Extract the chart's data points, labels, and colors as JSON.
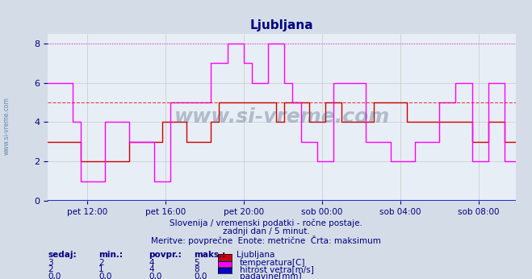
{
  "title": "Ljubljana",
  "bg_color": "#d4dce8",
  "plot_bg_color": "#e8eef5",
  "title_color": "#000080",
  "grid_color": "#c0c0c0",
  "xlabel_color": "#000080",
  "text_color": "#000080",
  "ylim": [
    0,
    8.5
  ],
  "yticks": [
    0,
    2,
    4,
    6,
    8
  ],
  "xtick_labels": [
    "pet 12:00",
    "pet 16:00",
    "pet 20:00",
    "sob 00:00",
    "sob 04:00",
    "sob 08:00"
  ],
  "temp_color": "#cc0000",
  "wind_color": "#ff00ff",
  "precip_color": "#0000cc",
  "temp_max_dashed_color": "#ff4444",
  "wind_max_dashed_color": "#ff88ff",
  "watermark": "www.si-vreme.com",
  "subtitle1": "Slovenija / vremenski podatki - ročne postaje.",
  "subtitle2": "zadnji dan / 5 minut.",
  "subtitle3": "Meritve: povprečne  Enote: metrične  Črta: maksimum",
  "legend_title": "Ljubljana",
  "legend_entries": [
    "temperatura[C]",
    "hitrost vetra[m/s]",
    "padavine[mm]"
  ],
  "legend_colors": [
    "#cc0000",
    "#ff00ff",
    "#0000cc"
  ],
  "table_headers": [
    "sedaj:",
    "min.:",
    "povpr.:",
    "maks.:"
  ],
  "table_data": [
    [
      "3",
      "2",
      "4",
      "5"
    ],
    [
      "2",
      "1",
      "4",
      "8"
    ],
    [
      "0,0",
      "0,0",
      "0,0",
      "0,0"
    ]
  ],
  "temp_max": 5,
  "wind_max": 8,
  "n_points": 288
}
